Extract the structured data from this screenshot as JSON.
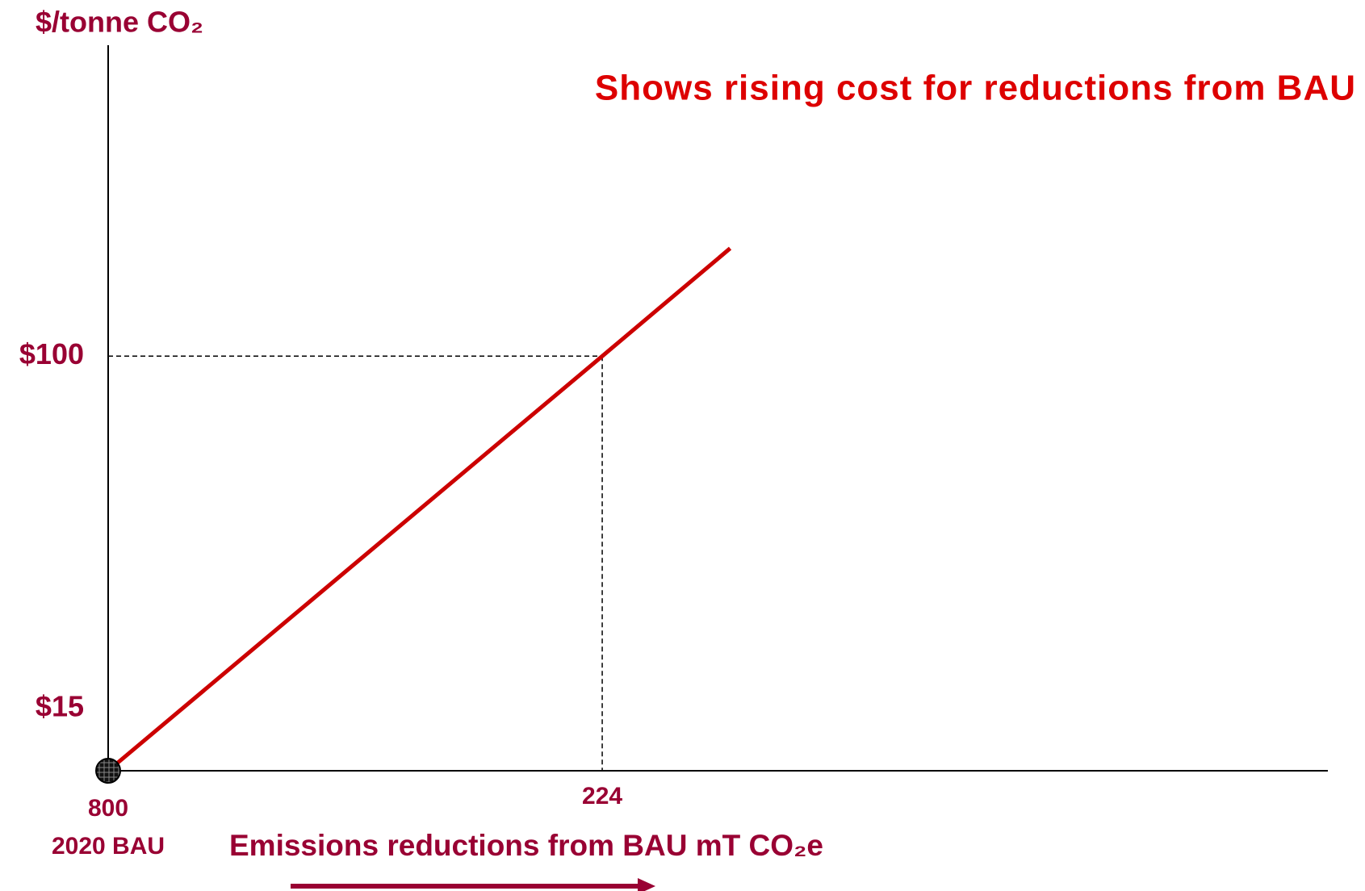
{
  "chart_data": {
    "type": "line",
    "title": "Shows rising cost for reductions from BAU",
    "y_label": "$/tonne CO₂",
    "x_label": "Emissions reductions from BAU mT CO₂e",
    "annotation": "2020 BAU",
    "x": [
      0,
      224,
      282
    ],
    "values": [
      0,
      100,
      126
    ],
    "color": "#cc0000",
    "xlim": [
      0,
      553
    ],
    "ylim": [
      0,
      175
    ],
    "xticks": [
      {
        "value": 0,
        "label": "800"
      },
      224
    ],
    "yticks": [
      {
        "value": 15,
        "label": "$15"
      },
      {
        "value": 100,
        "label": "$100"
      }
    ],
    "grid": false
  }
}
